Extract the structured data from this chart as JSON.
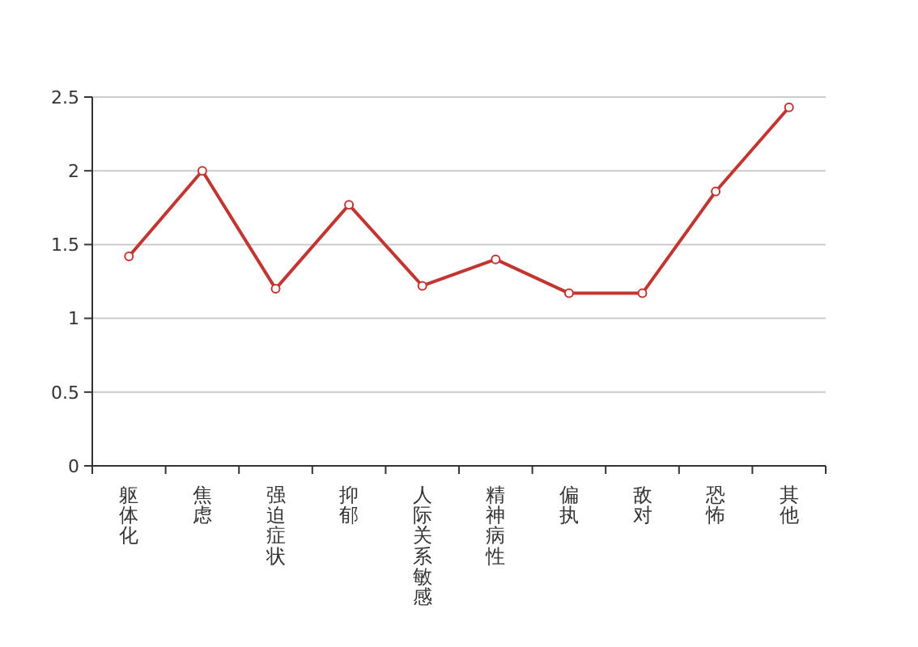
{
  "chart_data": {
    "type": "line",
    "categories": [
      "躯体化",
      "焦虑",
      "强迫症状",
      "抑郁",
      "人际关系敏感",
      "精神病性",
      "偏执",
      "敌对",
      "恐怖",
      "其他"
    ],
    "series": [
      {
        "color": "#c23531",
        "values": [
          1.42,
          2.0,
          1.2,
          1.77,
          1.22,
          1.4,
          1.17,
          1.17,
          1.86,
          2.43
        ]
      }
    ],
    "ylim": [
      0,
      2.5
    ],
    "yticks": [
      0,
      0.5,
      1,
      1.5,
      2,
      2.5
    ],
    "grid": "y",
    "marker": "circle"
  }
}
